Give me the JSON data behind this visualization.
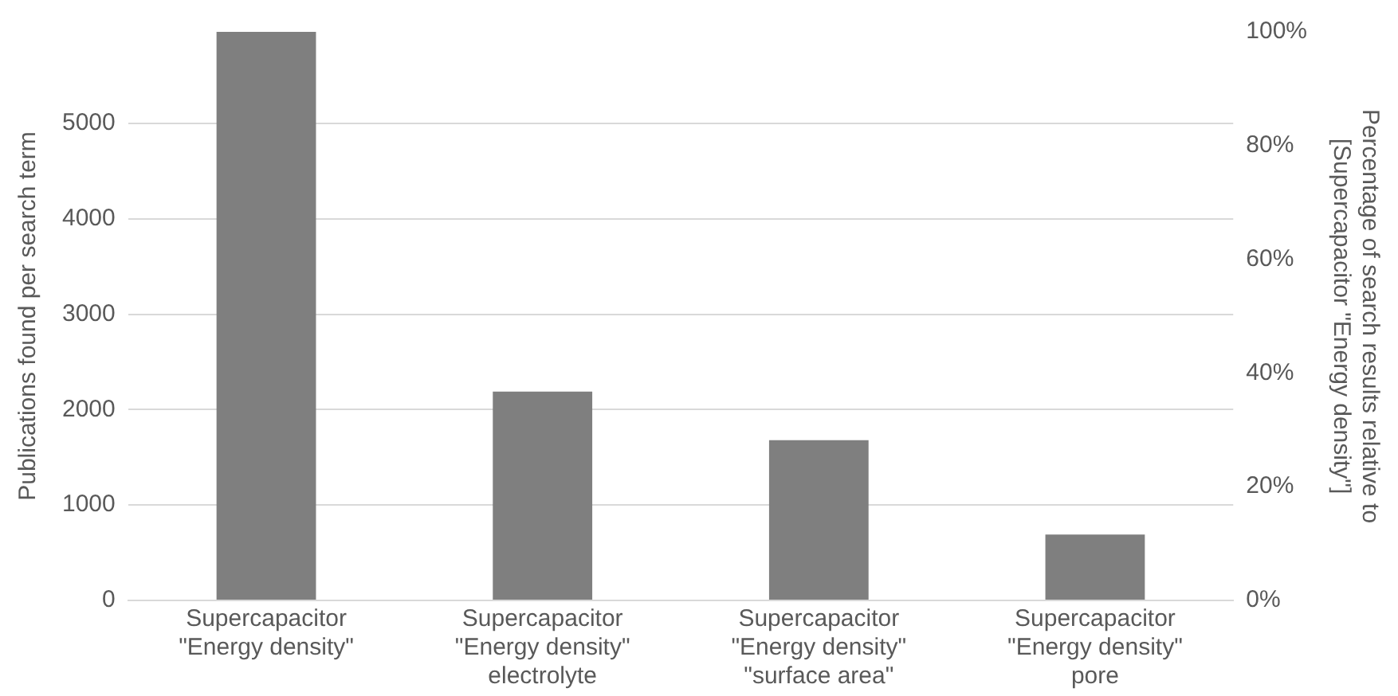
{
  "chart_data": {
    "type": "bar",
    "categories": [
      "Supercapacitor\n\"Energy density\"",
      "Supercapacitor\n\"Energy density\"\nelectrolyte",
      "Supercapacitor\n\"Energy density\"\n\"surface area\"",
      "Supercapacitor\n\"Energy density\"\npore"
    ],
    "series": [
      {
        "color": "#7f7f7f",
        "values": [
          5960,
          2190,
          1680,
          690
        ]
      }
    ],
    "ylabel": "Publications found per search term",
    "y2label": "Percentage of search results relative to\n[Supercapacitor \"Energy density\"]",
    "ylim": [
      0,
      5960
    ],
    "yticks": [
      0,
      1000,
      2000,
      3000,
      4000,
      5000
    ],
    "y2lim": [
      0,
      100
    ],
    "y2ticks": [
      {
        "value": 0,
        "label": "0%"
      },
      {
        "value": 20,
        "label": "20%"
      },
      {
        "value": 40,
        "label": "40%"
      },
      {
        "value": 60,
        "label": "60%"
      },
      {
        "value": 80,
        "label": "80%"
      },
      {
        "value": 100,
        "label": "100%"
      }
    ],
    "grid": "y",
    "legend": false
  }
}
